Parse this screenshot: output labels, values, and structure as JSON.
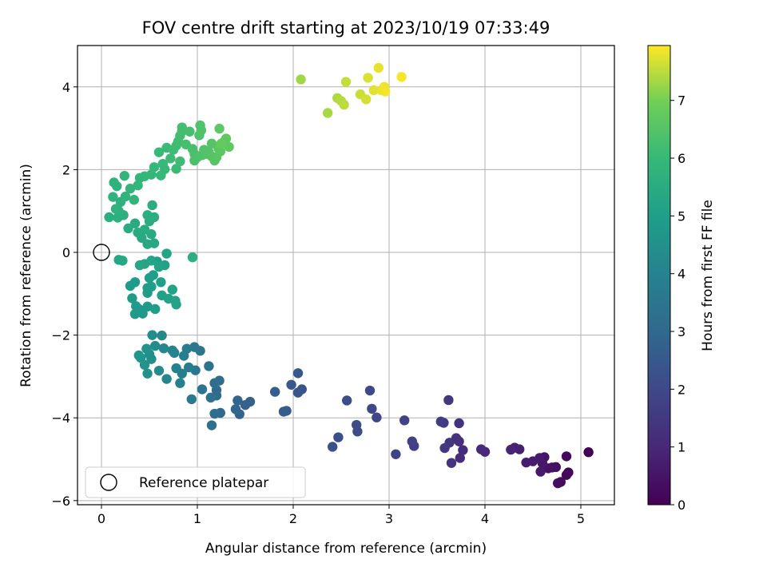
{
  "chart_data": {
    "type": "scatter",
    "title": "FOV centre drift starting at 2023/10/19 07:33:49",
    "xlabel": "Angular distance from reference (arcmin)",
    "ylabel": "Rotation from reference (arcmin)",
    "xlim": [
      -0.25,
      5.35
    ],
    "ylim": [
      -6.1,
      5.0
    ],
    "xticks": [
      0,
      1,
      2,
      3,
      4,
      5
    ],
    "xtick_labels": [
      "0",
      "1",
      "2",
      "3",
      "4",
      "5"
    ],
    "yticks": [
      -6,
      -4,
      -2,
      0,
      2,
      4
    ],
    "ytick_labels": [
      "−6",
      "−4",
      "−2",
      "0",
      "2",
      "4"
    ],
    "grid": true,
    "colormap": "viridis",
    "colorbar": {
      "label": "Hours from first FF file",
      "range": [
        0,
        7.95
      ],
      "ticks": [
        0,
        1,
        2,
        3,
        4,
        5,
        6,
        7
      ],
      "tick_labels": [
        "0",
        "1",
        "2",
        "3",
        "4",
        "5",
        "6",
        "7"
      ]
    },
    "legend": {
      "position": "lower-left",
      "entries": [
        "Reference platepar"
      ]
    },
    "reference_point": {
      "x": 0,
      "y": 0,
      "label": "Reference platepar"
    },
    "series": [
      {
        "points": [
          [
            5.08,
            -4.83,
            0.0
          ],
          [
            4.87,
            -5.32,
            0.1
          ],
          [
            4.85,
            -5.38,
            0.15
          ],
          [
            4.85,
            -4.93,
            0.2
          ],
          [
            4.79,
            -5.55,
            0.25
          ],
          [
            4.76,
            -5.58,
            0.3
          ],
          [
            4.74,
            -5.19,
            0.35
          ],
          [
            4.7,
            -5.2,
            0.4
          ],
          [
            4.66,
            -5.22,
            0.45
          ],
          [
            4.62,
            -4.95,
            0.5
          ],
          [
            4.6,
            -5.1,
            0.55
          ],
          [
            4.58,
            -5.3,
            0.6
          ],
          [
            4.57,
            -4.97,
            0.65
          ],
          [
            4.5,
            -5.05,
            0.7
          ],
          [
            4.43,
            -5.08,
            0.75
          ],
          [
            4.36,
            -4.76,
            0.8
          ],
          [
            4.31,
            -4.72,
            0.85
          ],
          [
            4.27,
            -4.77,
            0.9
          ],
          [
            4.0,
            -4.82,
            1.0
          ],
          [
            3.96,
            -4.76,
            1.05
          ],
          [
            3.74,
            -4.97,
            1.1
          ],
          [
            3.77,
            -4.78,
            1.15
          ],
          [
            3.73,
            -4.57,
            1.2
          ],
          [
            3.7,
            -4.49,
            1.25
          ],
          [
            3.73,
            -4.13,
            1.3
          ],
          [
            3.65,
            -5.09,
            1.35
          ],
          [
            3.63,
            -4.6,
            1.4
          ],
          [
            3.62,
            -3.57,
            1.45
          ],
          [
            3.58,
            -4.73,
            1.5
          ],
          [
            3.57,
            -4.12,
            1.55
          ],
          [
            3.54,
            -4.09,
            1.6
          ],
          [
            3.26,
            -4.68,
            1.7
          ],
          [
            3.24,
            -4.57,
            1.75
          ],
          [
            3.16,
            -4.06,
            1.8
          ],
          [
            3.07,
            -4.88,
            1.85
          ],
          [
            2.87,
            -3.99,
            1.9
          ],
          [
            2.82,
            -3.78,
            1.95
          ],
          [
            2.8,
            -3.34,
            2.0
          ],
          [
            2.67,
            -4.33,
            2.05
          ],
          [
            2.66,
            -4.17,
            2.1
          ],
          [
            2.56,
            -3.58,
            2.15
          ],
          [
            2.47,
            -4.47,
            2.2
          ],
          [
            2.41,
            -4.7,
            2.25
          ],
          [
            2.09,
            -3.31,
            2.35
          ],
          [
            2.05,
            -3.39,
            2.4
          ],
          [
            2.05,
            -2.92,
            2.45
          ],
          [
            1.98,
            -3.2,
            2.5
          ],
          [
            1.93,
            -3.83,
            2.55
          ],
          [
            1.9,
            -3.85,
            2.6
          ],
          [
            1.81,
            -3.37,
            2.65
          ],
          [
            1.55,
            -3.61,
            2.75
          ],
          [
            1.5,
            -3.69,
            2.8
          ],
          [
            1.44,
            -3.91,
            2.85
          ],
          [
            1.42,
            -3.58,
            2.9
          ],
          [
            1.4,
            -3.79,
            2.95
          ],
          [
            1.24,
            -3.88,
            3.0
          ],
          [
            1.2,
            -3.46,
            3.05
          ],
          [
            1.2,
            -3.33,
            3.1
          ],
          [
            1.23,
            -3.1,
            3.15
          ],
          [
            1.18,
            -3.16,
            3.2
          ],
          [
            1.18,
            -3.9,
            3.25
          ],
          [
            1.15,
            -4.18,
            3.3
          ],
          [
            1.14,
            -3.51,
            3.35
          ],
          [
            1.12,
            -2.75,
            3.4
          ],
          [
            1.05,
            -3.31,
            3.45
          ],
          [
            1.03,
            -2.38,
            3.5
          ],
          [
            0.98,
            -2.85,
            3.55
          ],
          [
            0.97,
            -2.29,
            3.6
          ],
          [
            0.94,
            -3.55,
            3.65
          ],
          [
            0.91,
            -2.78,
            3.7
          ],
          [
            0.89,
            -2.33,
            3.75
          ],
          [
            0.86,
            -2.5,
            3.8
          ],
          [
            0.84,
            -2.93,
            3.85
          ],
          [
            0.82,
            -3.16,
            3.9
          ],
          [
            0.78,
            -2.8,
            3.95
          ],
          [
            0.76,
            -2.43,
            4.0
          ],
          [
            0.74,
            -2.37,
            4.05
          ],
          [
            0.68,
            -3.06,
            4.1
          ],
          [
            0.65,
            -2.32,
            4.15
          ],
          [
            0.63,
            -2.01,
            4.2
          ],
          [
            0.6,
            -2.86,
            4.25
          ],
          [
            0.56,
            -2.26,
            4.3
          ],
          [
            0.53,
            -2.0,
            4.35
          ],
          [
            0.52,
            -2.58,
            4.4
          ],
          [
            0.5,
            -2.46,
            4.45
          ],
          [
            0.48,
            -2.93,
            4.5
          ],
          [
            0.47,
            -2.33,
            4.55
          ],
          [
            0.45,
            -2.72,
            4.6
          ],
          [
            0.41,
            -2.55,
            4.65
          ],
          [
            0.39,
            -2.49,
            4.7
          ],
          [
            0.39,
            -1.37,
            4.75
          ],
          [
            0.43,
            -1.48,
            4.78
          ],
          [
            0.48,
            -1.31,
            4.8
          ],
          [
            0.36,
            -1.3,
            4.82
          ],
          [
            0.35,
            -1.49,
            4.84
          ],
          [
            0.35,
            -0.72,
            4.86
          ],
          [
            0.32,
            -1.11,
            4.88
          ],
          [
            0.3,
            -0.81,
            4.9
          ],
          [
            0.48,
            -0.98,
            4.92
          ],
          [
            0.48,
            -0.86,
            4.94
          ],
          [
            0.5,
            -0.62,
            4.96
          ],
          [
            0.52,
            -0.83,
            4.98
          ],
          [
            0.54,
            -0.55,
            5.0
          ],
          [
            0.56,
            -1.37,
            5.02
          ],
          [
            0.58,
            -0.22,
            5.04
          ],
          [
            0.62,
            -0.72,
            5.06
          ],
          [
            0.63,
            -1.04,
            5.08
          ],
          [
            0.66,
            -0.31,
            5.1
          ],
          [
            0.7,
            -1.12,
            5.12
          ],
          [
            0.74,
            -0.9,
            5.14
          ],
          [
            0.77,
            -1.17,
            5.16
          ],
          [
            0.78,
            -1.26,
            5.18
          ],
          [
            0.68,
            -0.03,
            5.2
          ],
          [
            0.6,
            -0.35,
            5.22
          ],
          [
            0.52,
            -0.2,
            5.24
          ],
          [
            0.45,
            -0.28,
            5.26
          ],
          [
            0.4,
            -0.31,
            5.28
          ],
          [
            0.18,
            -0.18,
            5.3
          ],
          [
            0.22,
            -0.2,
            5.32
          ],
          [
            0.95,
            -0.12,
            5.6
          ],
          [
            0.55,
            0.22,
            5.35
          ],
          [
            0.48,
            0.2,
            5.38
          ],
          [
            0.52,
            0.44,
            5.4
          ],
          [
            0.42,
            0.35,
            5.42
          ],
          [
            0.38,
            0.48,
            5.44
          ],
          [
            0.35,
            0.7,
            5.46
          ],
          [
            0.28,
            0.58,
            5.48
          ],
          [
            0.5,
            0.75,
            5.5
          ],
          [
            0.45,
            0.55,
            5.52
          ],
          [
            0.55,
            0.85,
            5.54
          ],
          [
            0.48,
            0.9,
            5.56
          ],
          [
            0.53,
            1.14,
            5.58
          ],
          [
            0.08,
            0.85,
            5.62
          ],
          [
            0.17,
            0.84,
            5.64
          ],
          [
            0.23,
            0.9,
            5.66
          ],
          [
            0.18,
            1.0,
            5.68
          ],
          [
            0.2,
            1.22,
            5.7
          ],
          [
            0.12,
            1.34,
            5.72
          ],
          [
            0.15,
            1.05,
            5.74
          ],
          [
            0.16,
            1.6,
            5.76
          ],
          [
            0.13,
            1.69,
            5.78
          ],
          [
            0.25,
            1.35,
            5.8
          ],
          [
            0.34,
            1.27,
            5.82
          ],
          [
            0.3,
            1.54,
            5.84
          ],
          [
            0.24,
            1.85,
            5.86
          ],
          [
            0.4,
            1.8,
            5.88
          ],
          [
            0.38,
            1.62,
            5.9
          ],
          [
            0.45,
            1.84,
            5.92
          ],
          [
            0.52,
            1.88,
            5.94
          ],
          [
            0.55,
            2.06,
            5.96
          ],
          [
            0.62,
            1.86,
            5.98
          ],
          [
            0.64,
            2.14,
            6.0
          ],
          [
            0.66,
            2.01,
            6.02
          ],
          [
            0.6,
            2.42,
            6.04
          ],
          [
            0.68,
            2.53,
            6.06
          ],
          [
            0.78,
            2.02,
            6.08
          ],
          [
            0.72,
            2.27,
            6.1
          ],
          [
            0.75,
            2.48,
            6.12
          ],
          [
            0.82,
            2.2,
            6.14
          ],
          [
            0.78,
            2.58,
            6.16
          ],
          [
            0.8,
            2.68,
            6.18
          ],
          [
            0.82,
            2.82,
            6.2
          ],
          [
            0.84,
            2.93,
            6.22
          ],
          [
            0.84,
            3.02,
            6.24
          ],
          [
            0.92,
            2.92,
            6.26
          ],
          [
            0.88,
            2.61,
            6.28
          ],
          [
            0.95,
            2.5,
            6.3
          ],
          [
            0.97,
            2.38,
            6.32
          ],
          [
            0.97,
            2.22,
            6.34
          ],
          [
            1.0,
            2.3,
            6.36
          ],
          [
            1.05,
            2.35,
            6.38
          ],
          [
            1.02,
            2.83,
            6.4
          ],
          [
            1.04,
            2.95,
            6.42
          ],
          [
            1.03,
            3.07,
            6.44
          ],
          [
            1.07,
            2.48,
            6.46
          ],
          [
            1.1,
            2.38,
            6.48
          ],
          [
            1.12,
            2.42,
            6.5
          ],
          [
            1.15,
            2.63,
            6.52
          ],
          [
            1.15,
            2.32,
            6.54
          ],
          [
            1.18,
            2.22,
            6.56
          ],
          [
            1.2,
            2.3,
            6.58
          ],
          [
            1.22,
            2.51,
            6.6
          ],
          [
            1.24,
            2.44,
            6.62
          ],
          [
            1.23,
            2.99,
            6.64
          ],
          [
            1.28,
            2.68,
            6.66
          ],
          [
            1.3,
            2.75,
            6.68
          ],
          [
            1.33,
            2.55,
            6.7
          ],
          [
            1.25,
            2.63,
            6.8
          ],
          [
            2.08,
            4.18,
            7.3
          ],
          [
            2.36,
            3.37,
            7.35
          ],
          [
            2.46,
            3.73,
            7.4
          ],
          [
            2.5,
            3.66,
            7.45
          ],
          [
            2.53,
            3.57,
            7.5
          ],
          [
            2.55,
            4.12,
            7.55
          ],
          [
            2.7,
            3.82,
            7.6
          ],
          [
            2.76,
            3.7,
            7.65
          ],
          [
            2.78,
            4.22,
            7.7
          ],
          [
            2.84,
            3.92,
            7.75
          ],
          [
            2.89,
            4.46,
            7.8
          ],
          [
            2.92,
            3.92,
            7.82
          ],
          [
            2.95,
            4.0,
            7.85
          ],
          [
            2.96,
            3.89,
            7.88
          ],
          [
            3.13,
            4.24,
            7.9
          ]
        ]
      }
    ]
  }
}
